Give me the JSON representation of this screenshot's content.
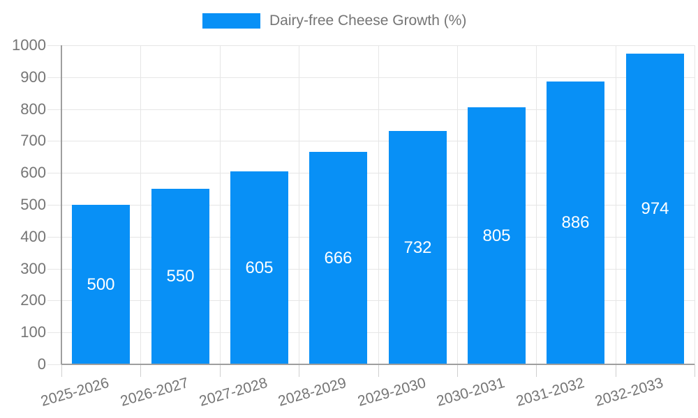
{
  "page": {
    "background": "#ffffff"
  },
  "legend": {
    "label": "Dairy-free Cheese Growth (%)"
  },
  "chart_data": {
    "type": "bar",
    "title": "",
    "legend_entries": [
      "Dairy-free Cheese Growth (%)"
    ],
    "legend_position": "top",
    "categories": [
      "2025-2026",
      "2026-2027",
      "2027-2028",
      "2028-2029",
      "2029-2030",
      "2030-2031",
      "2031-2032",
      "2032-2033"
    ],
    "values": [
      500,
      550,
      605,
      666,
      732,
      805,
      886,
      974
    ],
    "data_labels": [
      "500",
      "550",
      "605",
      "666",
      "732",
      "805",
      "886",
      "974"
    ],
    "xlabel": "",
    "ylabel": "",
    "ylim": [
      0,
      1000
    ],
    "yticks": [
      0,
      100,
      200,
      300,
      400,
      500,
      600,
      700,
      800,
      900,
      1000
    ],
    "grid": true,
    "colors": {
      "bar": "#0890f6",
      "bar_label": "#ffffff",
      "axis_text": "#757575",
      "grid_line": "#e6e6e6",
      "axis_line": "#9e9e9e",
      "tick_mark": "#cfcfcf"
    }
  }
}
